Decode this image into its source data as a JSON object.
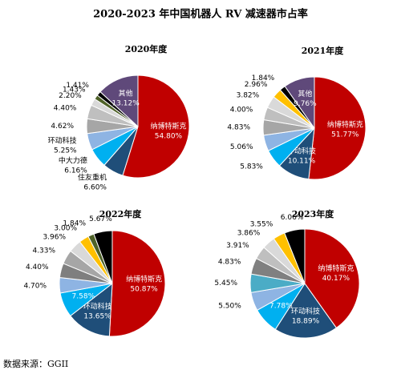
{
  "title": "2020-2023 年中国机器人 RV 减速器市占率",
  "source": "数据来源：GGII",
  "chart_data": [
    {
      "type": "pie",
      "title": "2020年度",
      "categories": [
        "纳博特斯克",
        "住友重机",
        "中大力德",
        "环动科技",
        null,
        null,
        null,
        null,
        null,
        "其他"
      ],
      "values": [
        54.8,
        6.6,
        6.16,
        5.25,
        4.62,
        4.4,
        2.2,
        1.43,
        1.41,
        13.12
      ],
      "value_labels": [
        "54.80%",
        "6.60%",
        "6.16%",
        "5.25%",
        "4.62%",
        "4.40%",
        "2.20%",
        "1.43%",
        "1.41%",
        "13.12%"
      ],
      "colors": [
        "#c00000",
        "#1f4e79",
        "#00b0f0",
        "#8eb4e3",
        "#a6a6a6",
        "#bfbfbf",
        "#d9d9d9",
        "#4f6228",
        "#000000",
        "#5f497a"
      ]
    },
    {
      "type": "pie",
      "title": "2021年度",
      "categories": [
        "纳博特斯克",
        "环动科技",
        null,
        null,
        null,
        null,
        null,
        null,
        null,
        "其他"
      ],
      "values": [
        51.77,
        10.11,
        5.83,
        5.06,
        4.83,
        4.0,
        3.82,
        2.96,
        1.84,
        9.76
      ],
      "value_labels": [
        "51.77%",
        "10.11%",
        "5.83%",
        "5.06%",
        "4.83%",
        "4.00%",
        "3.82%",
        "2.96%",
        "1.84%",
        "9.76%"
      ],
      "colors": [
        "#c00000",
        "#1f4e79",
        "#00b0f0",
        "#8eb4e3",
        "#a6a6a6",
        "#bfbfbf",
        "#d9d9d9",
        "#ffc000",
        "#000000",
        "#5f497a"
      ]
    },
    {
      "type": "pie",
      "title": "2022年度",
      "categories": [
        "纳博特斯克",
        "环动科技",
        null,
        null,
        null,
        null,
        null,
        null,
        null,
        null
      ],
      "values": [
        50.87,
        13.65,
        7.58,
        4.7,
        4.4,
        4.33,
        3.96,
        3.0,
        1.84,
        5.67
      ],
      "value_labels": [
        "50.87%",
        "13.65%",
        "7.58%",
        "4.70%",
        "4.40%",
        "4.33%",
        "3.96%",
        "3.00%",
        "1.84%",
        "5.67%"
      ],
      "colors": [
        "#c00000",
        "#1f4e79",
        "#00b0f0",
        "#8eb4e3",
        "#7f7f7f",
        "#a6a6a6",
        "#d9d9d9",
        "#ffc000",
        "#4f6228",
        "#000000"
      ]
    },
    {
      "type": "pie",
      "title": "2023年度",
      "categories": [
        "纳博特斯克",
        "环动科技",
        null,
        null,
        null,
        null,
        null,
        null,
        null,
        null
      ],
      "values": [
        40.17,
        18.89,
        7.78,
        5.5,
        5.45,
        4.83,
        3.91,
        3.86,
        3.55,
        6.06
      ],
      "value_labels": [
        "40.17%",
        "18.89%",
        "7.78%",
        "5.50%",
        "5.45%",
        "4.83%",
        "3.91%",
        "3.86%",
        "3.55%",
        "6.06%"
      ],
      "colors": [
        "#c00000",
        "#1f4e79",
        "#00b0f0",
        "#8eb4e3",
        "#4bacc6",
        "#808080",
        "#bfbfbf",
        "#d9d9d9",
        "#ffc000",
        "#000000"
      ]
    }
  ]
}
